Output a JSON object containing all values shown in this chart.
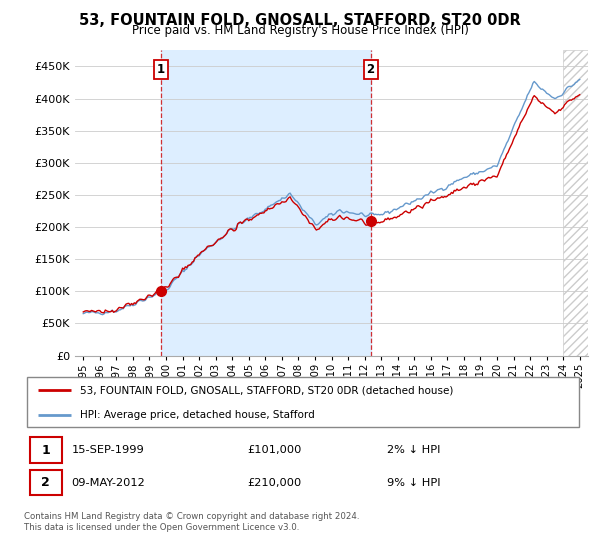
{
  "title": "53, FOUNTAIN FOLD, GNOSALL, STAFFORD, ST20 0DR",
  "subtitle": "Price paid vs. HM Land Registry's House Price Index (HPI)",
  "ylim": [
    0,
    475000
  ],
  "yticks": [
    0,
    50000,
    100000,
    150000,
    200000,
    250000,
    300000,
    350000,
    400000,
    450000
  ],
  "purchase1": {
    "date_num": 1999.71,
    "price": 101000,
    "label": "1",
    "date_str": "15-SEP-1999"
  },
  "purchase2": {
    "date_num": 2012.36,
    "price": 210000,
    "label": "2",
    "date_str": "09-MAY-2012"
  },
  "legend_line1": "53, FOUNTAIN FOLD, GNOSALL, STAFFORD, ST20 0DR (detached house)",
  "legend_line2": "HPI: Average price, detached house, Stafford",
  "footer": "Contains HM Land Registry data © Crown copyright and database right 2024.\nThis data is licensed under the Open Government Licence v3.0.",
  "hpi_color": "#6699cc",
  "price_color": "#cc0000",
  "vline_color": "#cc0000",
  "shade_color": "#ddeeff",
  "background_color": "#ffffff",
  "hatch_color": "#cccccc"
}
